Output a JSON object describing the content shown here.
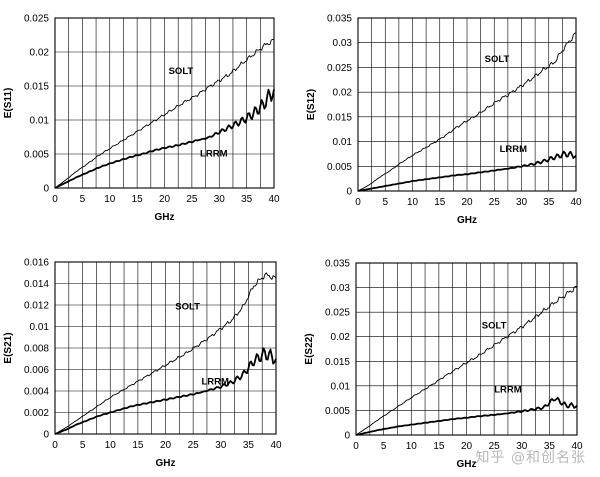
{
  "watermark": "知乎 @和创名张",
  "chart_data": [
    {
      "type": "line",
      "title": "",
      "xlabel": "GHz",
      "ylabel": "E(S11)",
      "xlim": [
        0,
        40
      ],
      "ylim": [
        0,
        0.025
      ],
      "xticks": [
        0,
        5,
        10,
        15,
        20,
        25,
        30,
        35,
        40
      ],
      "yticks": [
        0,
        0.005,
        0.01,
        0.015,
        0.02,
        0.025
      ],
      "ytick_labels": [
        "0",
        "0.005",
        "0.01",
        "0.015",
        "0.02",
        "0.025"
      ],
      "grid": true,
      "legend": "none",
      "series": [
        {
          "name": "SOLT",
          "x": [
            0,
            2,
            4,
            6,
            8,
            10,
            12,
            14,
            16,
            18,
            20,
            22,
            24,
            26,
            28,
            30,
            32,
            34,
            36,
            38,
            40
          ],
          "y": [
            0,
            0.0012,
            0.0025,
            0.0036,
            0.0048,
            0.0058,
            0.0068,
            0.0078,
            0.0088,
            0.0098,
            0.0108,
            0.0118,
            0.0128,
            0.0137,
            0.0148,
            0.0158,
            0.0168,
            0.0182,
            0.0195,
            0.0208,
            0.0218
          ]
        },
        {
          "name": "LRRM",
          "x": [
            0,
            2,
            4,
            6,
            8,
            10,
            12,
            14,
            16,
            18,
            20,
            22,
            24,
            26,
            28,
            30,
            32,
            34,
            36,
            38,
            40
          ],
          "y": [
            0,
            0.0008,
            0.0016,
            0.0023,
            0.003,
            0.0036,
            0.0041,
            0.0046,
            0.005,
            0.0055,
            0.0059,
            0.0062,
            0.0066,
            0.007,
            0.0074,
            0.0082,
            0.009,
            0.0098,
            0.0108,
            0.0122,
            0.0145
          ]
        }
      ]
    },
    {
      "type": "line",
      "title": "",
      "xlabel": "GHz",
      "ylabel": "E(S12)",
      "xlim": [
        0,
        40
      ],
      "ylim": [
        0,
        0.035
      ],
      "xticks": [
        0,
        5,
        10,
        15,
        20,
        25,
        30,
        35,
        40
      ],
      "yticks": [
        0,
        0.005,
        0.01,
        0.015,
        0.02,
        0.025,
        0.03,
        0.035
      ],
      "ytick_labels": [
        "0",
        "0.005",
        "0.01",
        "0.015",
        "0.02",
        "0.025",
        "0.03",
        "0.035"
      ],
      "grid": true,
      "legend": "none",
      "series": [
        {
          "name": "SOLT",
          "x": [
            0,
            2,
            4,
            6,
            8,
            10,
            12,
            14,
            16,
            18,
            20,
            22,
            24,
            26,
            28,
            30,
            32,
            34,
            36,
            38,
            40
          ],
          "y": [
            0,
            0.0012,
            0.0028,
            0.0042,
            0.0058,
            0.0072,
            0.0085,
            0.0098,
            0.0112,
            0.0128,
            0.0142,
            0.0155,
            0.017,
            0.0185,
            0.0198,
            0.0213,
            0.0228,
            0.0245,
            0.026,
            0.0292,
            0.032
          ]
        },
        {
          "name": "LRRM",
          "x": [
            0,
            2,
            4,
            6,
            8,
            10,
            12,
            14,
            16,
            18,
            20,
            22,
            24,
            26,
            28,
            30,
            32,
            34,
            36,
            38,
            40
          ],
          "y": [
            0,
            0.0004,
            0.0008,
            0.0012,
            0.0016,
            0.002,
            0.0023,
            0.0026,
            0.0029,
            0.0032,
            0.0034,
            0.0037,
            0.004,
            0.0043,
            0.0046,
            0.005,
            0.0054,
            0.006,
            0.0068,
            0.0075,
            0.0072
          ]
        }
      ]
    },
    {
      "type": "line",
      "title": "",
      "xlabel": "GHz",
      "ylabel": "E(S21)",
      "xlim": [
        0,
        40
      ],
      "ylim": [
        0,
        0.016
      ],
      "xticks": [
        0,
        5,
        10,
        15,
        20,
        25,
        30,
        35,
        40
      ],
      "yticks": [
        0,
        0.002,
        0.004,
        0.006,
        0.008,
        0.01,
        0.012,
        0.014,
        0.016
      ],
      "ytick_labels": [
        "0",
        "0.002",
        "0.004",
        "0.006",
        "0.008",
        "0.01",
        "0.012",
        "0.014",
        "0.016"
      ],
      "grid": true,
      "legend": "none",
      "series": [
        {
          "name": "SOLT",
          "x": [
            0,
            2,
            4,
            6,
            8,
            10,
            12,
            14,
            16,
            18,
            20,
            22,
            24,
            26,
            28,
            30,
            32,
            34,
            36,
            38,
            40
          ],
          "y": [
            0,
            0.0006,
            0.0013,
            0.002,
            0.0027,
            0.0034,
            0.004,
            0.0046,
            0.0052,
            0.0058,
            0.0064,
            0.007,
            0.0076,
            0.0083,
            0.009,
            0.0098,
            0.0106,
            0.0118,
            0.0138,
            0.0148,
            0.0145
          ]
        },
        {
          "name": "LRRM",
          "x": [
            0,
            2,
            4,
            6,
            8,
            10,
            12,
            14,
            16,
            18,
            20,
            22,
            24,
            26,
            28,
            30,
            32,
            34,
            36,
            38,
            40
          ],
          "y": [
            0,
            0.0004,
            0.0009,
            0.0013,
            0.0017,
            0.002,
            0.0023,
            0.0026,
            0.0028,
            0.003,
            0.0032,
            0.0034,
            0.0036,
            0.0038,
            0.0041,
            0.0044,
            0.0048,
            0.0055,
            0.0068,
            0.0075,
            0.007
          ]
        }
      ]
    },
    {
      "type": "line",
      "title": "",
      "xlabel": "GHz",
      "ylabel": "E(S22)",
      "xlim": [
        0,
        40
      ],
      "ylim": [
        0,
        0.035
      ],
      "xticks": [
        0,
        5,
        10,
        15,
        20,
        25,
        30,
        35,
        40
      ],
      "yticks": [
        0,
        0.005,
        0.01,
        0.015,
        0.02,
        0.025,
        0.03,
        0.035
      ],
      "ytick_labels": [
        "0",
        "0.005",
        "0.01",
        "0.015",
        "0.02",
        "0.025",
        "0.03",
        "0.035"
      ],
      "grid": true,
      "legend": "none",
      "series": [
        {
          "name": "SOLT",
          "x": [
            0,
            2,
            4,
            6,
            8,
            10,
            12,
            14,
            16,
            18,
            20,
            22,
            24,
            26,
            28,
            30,
            32,
            34,
            36,
            38,
            40
          ],
          "y": [
            0,
            0.0015,
            0.0031,
            0.0046,
            0.0061,
            0.0076,
            0.009,
            0.0104,
            0.0119,
            0.0133,
            0.0147,
            0.016,
            0.0175,
            0.019,
            0.0205,
            0.022,
            0.0236,
            0.0253,
            0.027,
            0.0286,
            0.0302
          ]
        },
        {
          "name": "LRRM",
          "x": [
            0,
            2,
            4,
            6,
            8,
            10,
            12,
            14,
            16,
            18,
            20,
            22,
            24,
            26,
            28,
            30,
            32,
            34,
            36,
            38,
            40
          ],
          "y": [
            0,
            0.0005,
            0.001,
            0.0014,
            0.0018,
            0.0021,
            0.0024,
            0.0027,
            0.003,
            0.0033,
            0.0035,
            0.0038,
            0.004,
            0.0042,
            0.0045,
            0.0048,
            0.0052,
            0.0056,
            0.0075,
            0.006,
            0.006
          ]
        }
      ]
    }
  ]
}
